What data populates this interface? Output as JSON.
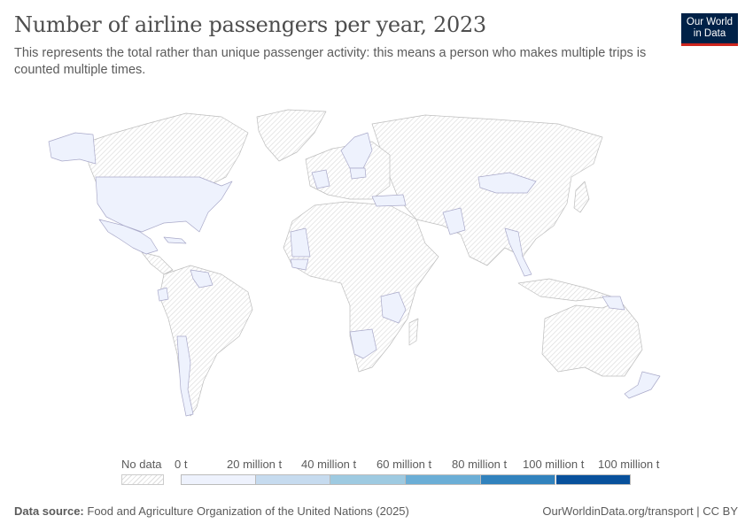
{
  "header": {
    "title": "Number of airline passengers per year, 2023",
    "subtitle": "This represents the total rather than unique passenger activity: this means a person who makes multiple trips is counted multiple times.",
    "logo_line1": "Our World",
    "logo_line2": "in Data"
  },
  "chart_data": {
    "type": "map",
    "title": "Number of airline passengers per year, 2023",
    "year": 2023,
    "no_data_label": "No data",
    "no_data_pattern": "hatched grey",
    "legend_placement": "bottom",
    "bins": [
      {
        "label": "0 t",
        "color": "#eef2fd"
      },
      {
        "label": "20 million t",
        "color": "#c6dbef"
      },
      {
        "label": "40 million t",
        "color": "#9ecae1"
      },
      {
        "label": "60 million t",
        "color": "#6baed6"
      },
      {
        "label": "80 million t",
        "color": "#3182bd"
      },
      {
        "label": "100 million t",
        "color": "#08519c"
      },
      {
        "label": "100 million t"
      }
    ],
    "regions_with_data_lowest_bin": [
      "United States",
      "Alaska (US)",
      "Mexico",
      "Cuba",
      "Venezuela",
      "Ecuador",
      "Chile",
      "Argentina (part)",
      "Mauritania",
      "Senegal",
      "Kenya",
      "Tanzania",
      "Namibia",
      "Botswana",
      "Ireland",
      "France",
      "Norway",
      "Sweden",
      "Finland",
      "Poland",
      "Turkey",
      "Greece",
      "Italy",
      "Saudi Arabia (part)",
      "Pakistan",
      "Mongolia",
      "Myanmar",
      "Thailand",
      "Papua New Guinea",
      "New Zealand"
    ]
  },
  "footer": {
    "source_label": "Data source:",
    "source_text": "Food and Agriculture Organization of the United Nations (2025)",
    "link": "OurWorldinData.org/transport | CC BY"
  }
}
